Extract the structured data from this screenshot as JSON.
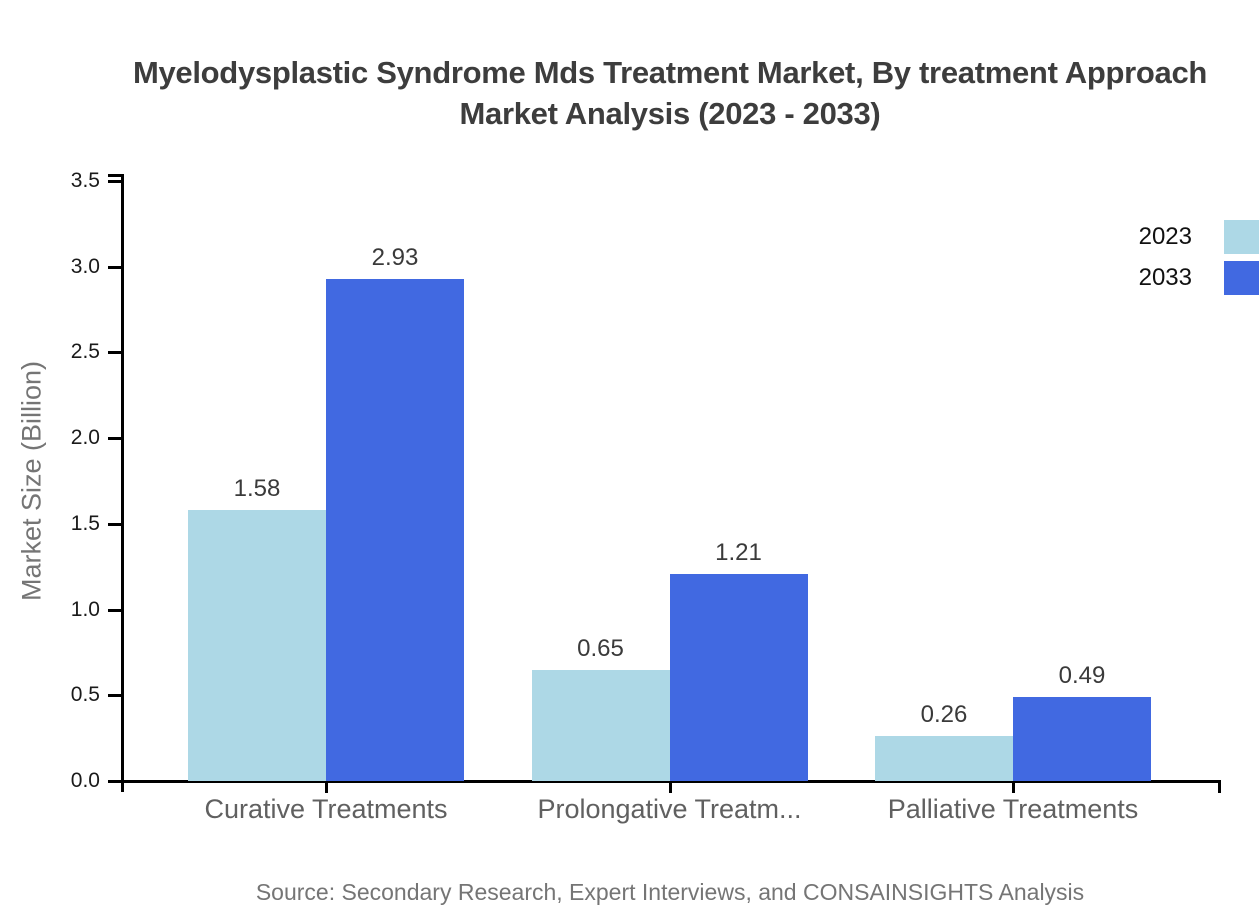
{
  "title": {
    "line1": "Myelodysplastic Syndrome Mds Treatment Market, By treatment Approach",
    "line2": "Market Analysis (2023 - 2033)"
  },
  "source": "Source: Secondary Research, Expert Interviews, and CONSAINSIGHTS Analysis",
  "legend": [
    {
      "label": "2023",
      "color": "#ADD8E6"
    },
    {
      "label": "2033",
      "color": "#4169E1"
    }
  ],
  "chart_data": {
    "type": "bar",
    "title": "Myelodysplastic Syndrome Mds Treatment Market, By treatment Approach Market Analysis (2023 - 2033)",
    "categories": [
      "Curative Treatments",
      "Prolongative Treatm...",
      "Palliative Treatments"
    ],
    "series": [
      {
        "name": "2023",
        "color": "#ADD8E6",
        "values": [
          1.58,
          0.65,
          0.26
        ]
      },
      {
        "name": "2033",
        "color": "#4169E1",
        "values": [
          2.93,
          1.21,
          0.49
        ]
      }
    ],
    "value_labels": [
      [
        "1.58",
        "0.65",
        "0.26"
      ],
      [
        "2.93",
        "1.21",
        "0.49"
      ]
    ],
    "xlabel": "",
    "ylabel": "Market Size (Billion)",
    "ylim": [
      0,
      3.5
    ],
    "y_tick_labels": [
      "0.0",
      "0.5",
      "1.0",
      "1.5",
      "2.0",
      "2.5",
      "3.0",
      "3.5"
    ],
    "grid": false,
    "legend_position": "top-right"
  }
}
